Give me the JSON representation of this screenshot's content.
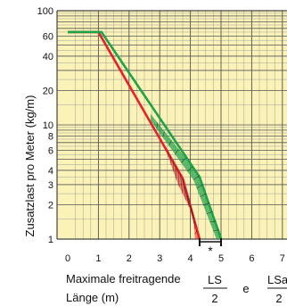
{
  "chart_data": {
    "type": "line",
    "ylabel": "Zusatzlast pro Meter (kg/m)",
    "xlabel_line1": "Maximale freitragende",
    "xlabel_line2": "Länge (m)",
    "fraction_left_numerator": "LS",
    "fraction_left_denominator": "2",
    "fraction_joiner": "e",
    "fraction_right_numerator": "LSa",
    "fraction_right_denominator": "2",
    "bracket_marker": "*",
    "y_scale": "log",
    "ylim": [
      1,
      100
    ],
    "xlim": [
      0,
      7
    ],
    "x_ticks": [
      0,
      1,
      2,
      3,
      4,
      5,
      6,
      7
    ],
    "y_ticks": [
      1,
      2,
      3,
      4,
      6,
      8,
      10,
      20,
      40,
      60,
      100
    ],
    "grid": true,
    "series": [
      {
        "color": "#e8202a",
        "points": [
          [
            0,
            65
          ],
          [
            1,
            65
          ],
          [
            3.75,
            3.4
          ],
          [
            4.3,
            1
          ]
        ],
        "band_upper": [
          [
            3.2,
            6.5
          ],
          [
            3.75,
            3.4
          ],
          [
            4.3,
            1
          ]
        ],
        "band_lower": [
          [
            3.2,
            6.0
          ],
          [
            3.6,
            3.0
          ],
          [
            4.1,
            1.6
          ],
          [
            4.15,
            1
          ]
        ]
      },
      {
        "color": "#1fa34a",
        "points": [
          [
            0,
            65
          ],
          [
            1.1,
            65
          ],
          [
            4.3,
            3.5
          ],
          [
            5.0,
            1
          ]
        ],
        "band_upper": [
          [
            2.7,
            12.5
          ],
          [
            4.3,
            3.6
          ],
          [
            5.05,
            1
          ]
        ],
        "band_lower": [
          [
            2.7,
            11
          ],
          [
            4.1,
            3.3
          ],
          [
            4.85,
            1
          ]
        ]
      }
    ],
    "bracket_x": [
      4.3,
      5.0
    ],
    "colors": {
      "background": "#fbf2b8",
      "major_grid": "#555555",
      "minor_grid": "#8d8d8d"
    }
  }
}
